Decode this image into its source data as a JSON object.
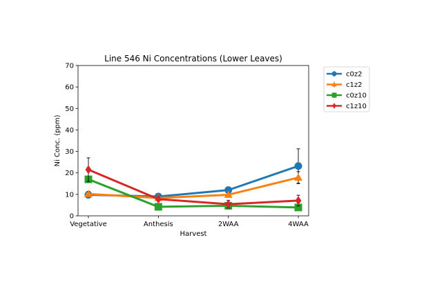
{
  "chart_data": {
    "type": "line",
    "title": "Line 546 Ni Concentrations (Lower Leaves)",
    "xlabel": "Harvest",
    "ylabel": "Ni Conc. (ppm)",
    "categories": [
      "Vegetative",
      "Anthesis",
      "2WAA",
      "4WAA"
    ],
    "ylim": [
      0,
      70
    ],
    "yticks": [
      0,
      10,
      20,
      30,
      40,
      50,
      60,
      70
    ],
    "grid": false,
    "legend_position": "outside-top-right",
    "series": [
      {
        "name": "c0z2",
        "color": "#1f77b4",
        "marker": "circle",
        "values": [
          9.8,
          9.0,
          12.0,
          23.2
        ],
        "errors": [
          1.5,
          0.8,
          0.8,
          8.0
        ]
      },
      {
        "name": "c1z2",
        "color": "#ff7f0e",
        "marker": "triangle",
        "values": [
          10.2,
          8.3,
          9.8,
          17.8
        ],
        "errors": [
          1.2,
          0.8,
          0.8,
          2.8
        ]
      },
      {
        "name": "c0z10",
        "color": "#2ca02c",
        "marker": "square",
        "values": [
          17.0,
          4.2,
          4.7,
          3.9
        ],
        "errors": [
          0.8,
          1.5,
          1.2,
          0.6
        ]
      },
      {
        "name": "c1z10",
        "color": "#d62728",
        "marker": "diamond",
        "values": [
          21.5,
          7.8,
          5.4,
          7.1
        ],
        "errors": [
          5.5,
          0.8,
          1.8,
          2.5
        ]
      }
    ]
  }
}
